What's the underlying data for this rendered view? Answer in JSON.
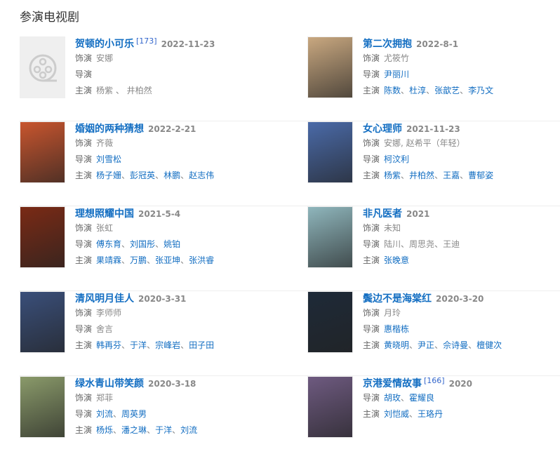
{
  "section_title": "参演电视剧",
  "colors": {
    "link": "#136ec2",
    "gray": "#888888"
  },
  "labels": {
    "role": "饰演",
    "director": "导演",
    "cast": "主演"
  },
  "dramas": [
    {
      "title": "贺顿的小可乐",
      "ref": "[173]",
      "date": "2022-11-23",
      "poster": "film-reel-placeholder-icon",
      "role": [
        {
          "n": "安娜",
          "l": false
        }
      ],
      "director": [],
      "cast": [
        {
          "n": "杨紫",
          "l": false
        },
        {
          "n": "井柏然",
          "l": false
        }
      ],
      "cast_sep": " 、"
    },
    {
      "title": "第二次拥抱",
      "date": "2022-8-1",
      "poster": "#c9a880",
      "role": [
        {
          "n": "尤筱竹",
          "l": false
        }
      ],
      "director": [
        {
          "n": "尹丽川",
          "l": true
        }
      ],
      "cast": [
        {
          "n": "陈数",
          "l": true
        },
        {
          "n": "杜淳",
          "l": true
        },
        {
          "n": "张歆艺",
          "l": true
        },
        {
          "n": "李乃文",
          "l": true
        }
      ]
    },
    {
      "title": "婚姻的两种猜想",
      "date": "2022-2-21",
      "poster": "#c8552e",
      "role": [
        {
          "n": "齐薇",
          "l": false
        }
      ],
      "director": [
        {
          "n": "刘雪松",
          "l": true
        }
      ],
      "cast": [
        {
          "n": "杨子姗",
          "l": true
        },
        {
          "n": "彭冠英",
          "l": true
        },
        {
          "n": "林鹏",
          "l": true
        },
        {
          "n": "赵志伟",
          "l": true
        }
      ]
    },
    {
      "title": "女心理师",
      "date": "2021-11-23",
      "poster": "#4a6aa8",
      "role": [
        {
          "n": "安娜, 赵希平（年轻）",
          "l": false
        }
      ],
      "director": [
        {
          "n": "柯汶利",
          "l": true
        }
      ],
      "cast": [
        {
          "n": "杨紫",
          "l": true
        },
        {
          "n": "井柏然",
          "l": true
        },
        {
          "n": "王嘉",
          "l": true
        },
        {
          "n": "曹郁姿",
          "l": true
        }
      ]
    },
    {
      "title": "理想照耀中国",
      "date": "2021-5-4",
      "poster": "#7a2a15",
      "role": [
        {
          "n": "张虹",
          "l": false
        }
      ],
      "director": [
        {
          "n": "傅东育",
          "l": true
        },
        {
          "n": "刘国彤",
          "l": true
        },
        {
          "n": "姚铂",
          "l": true
        }
      ],
      "cast": [
        {
          "n": "果靖霖",
          "l": true
        },
        {
          "n": "万鹏",
          "l": true
        },
        {
          "n": "张亚坤",
          "l": true
        },
        {
          "n": "张洪睿",
          "l": true
        }
      ]
    },
    {
      "title": "非凡医者",
      "date": "2021",
      "poster": "#8fb6bc",
      "role": [
        {
          "n": "未知",
          "l": false
        }
      ],
      "director": [
        {
          "n": "陆川",
          "l": false
        },
        {
          "n": "周思尧",
          "l": false
        },
        {
          "n": "王迪",
          "l": false
        }
      ],
      "cast": [
        {
          "n": "张晚意",
          "l": true
        }
      ]
    },
    {
      "title": "清风明月佳人",
      "date": "2020-3-31",
      "poster": "#3a4f7a",
      "role": [
        {
          "n": "李师师",
          "l": false
        }
      ],
      "director": [
        {
          "n": "舍言",
          "l": false
        }
      ],
      "cast": [
        {
          "n": "韩再芬",
          "l": true
        },
        {
          "n": "于洋",
          "l": true
        },
        {
          "n": "宗峰岩",
          "l": true
        },
        {
          "n": "田子田",
          "l": true
        }
      ]
    },
    {
      "title": "鬓边不是海棠红",
      "date": "2020-3-20",
      "poster": "#1e2a38",
      "role": [
        {
          "n": "月玲",
          "l": false
        }
      ],
      "director": [
        {
          "n": "惠楷栋",
          "l": true
        }
      ],
      "cast": [
        {
          "n": "黄晓明",
          "l": true
        },
        {
          "n": "尹正",
          "l": true
        },
        {
          "n": "佘诗曼",
          "l": true
        },
        {
          "n": "檀健次",
          "l": true
        }
      ]
    },
    {
      "title": "绿水青山带笑颜",
      "date": "2020-3-18",
      "poster": "#8a9a6a",
      "role": [
        {
          "n": "郑菲",
          "l": false
        }
      ],
      "director": [
        {
          "n": "刘流",
          "l": true
        },
        {
          "n": "周英男",
          "l": true
        }
      ],
      "cast": [
        {
          "n": "杨烁",
          "l": true
        },
        {
          "n": "潘之琳",
          "l": true
        },
        {
          "n": "于洋",
          "l": true
        },
        {
          "n": "刘流",
          "l": true
        }
      ]
    },
    {
      "title": "京港爱情故事",
      "ref": "[166]",
      "date": "2020",
      "poster": "#6e5a80",
      "director": [
        {
          "n": "胡玫",
          "l": true
        },
        {
          "n": "霍耀良",
          "l": true
        }
      ],
      "cast": [
        {
          "n": "刘恺威",
          "l": true
        },
        {
          "n": "王珞丹",
          "l": true
        }
      ]
    }
  ]
}
